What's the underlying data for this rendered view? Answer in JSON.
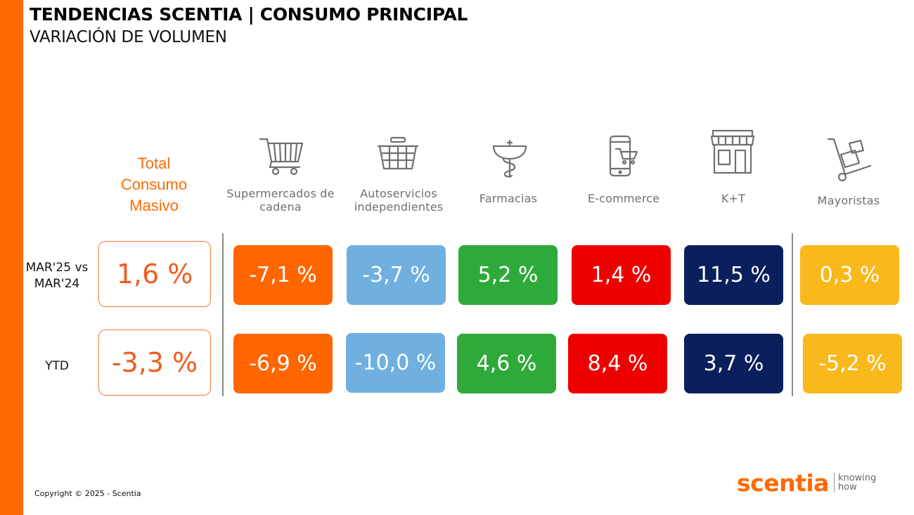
{
  "header": {
    "title": "TENDENCIAS SCENTIA  | CONSUMO PRINCIPAL",
    "subtitle": "VARIACIÓN DE VOLUMEN"
  },
  "total": {
    "label_lines": [
      "Total",
      "Consumo",
      "Masivo"
    ],
    "mar_value": "1,6 %",
    "ytd_value": "-3,3 %"
  },
  "rows": {
    "mar_label": "MAR'25 vs MAR'24",
    "ytd_label": "YTD"
  },
  "channels": [
    {
      "name": "Supermercados de cadena",
      "icon": "shopping-cart-icon",
      "color": "#ff6600",
      "mar": "-7,1 %",
      "ytd": "-6,9 %"
    },
    {
      "name": "Autoservicios independientes",
      "icon": "shopping-basket-icon",
      "color": "#6fb0e0",
      "mar": "-3,7 %",
      "ytd": "-10,0 %"
    },
    {
      "name": "Farmacias",
      "icon": "pharmacy-icon",
      "color": "#2eaa3a",
      "mar": "5,2 %",
      "ytd": "4,6 %"
    },
    {
      "name": "E-commerce",
      "icon": "mobile-cart-icon",
      "color": "#ee0000",
      "mar": "1,4 %",
      "ytd": "8,4 %"
    },
    {
      "name": "K+T",
      "icon": "storefront-icon",
      "color": "#0b1f5c",
      "mar": "11,5 %",
      "ytd": "3,7 %"
    },
    {
      "name": "Mayoristas",
      "icon": "hand-truck-icon",
      "color": "#f9b81b",
      "mar": "0,3 %",
      "ytd": "-5,2 %"
    }
  ],
  "footer": {
    "copyright": "Copyright © 2025 - Scentia",
    "logo_word": "scentia",
    "logo_tag_1": "knowing",
    "logo_tag_2": "how"
  }
}
